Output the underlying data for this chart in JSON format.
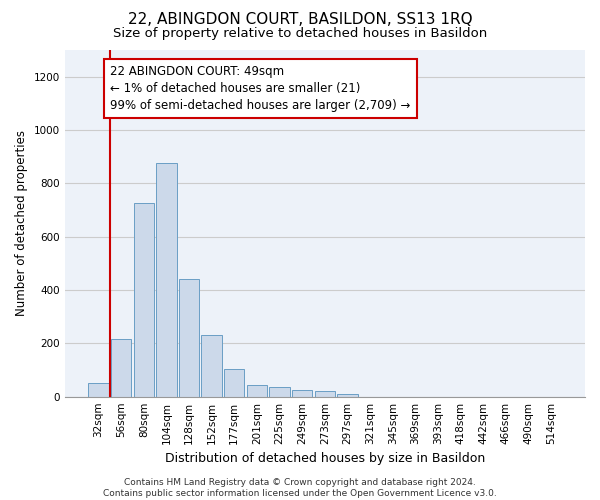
{
  "title": "22, ABINGDON COURT, BASILDON, SS13 1RQ",
  "subtitle": "Size of property relative to detached houses in Basildon",
  "xlabel": "Distribution of detached houses by size in Basildon",
  "ylabel": "Number of detached properties",
  "categories": [
    "32sqm",
    "56sqm",
    "80sqm",
    "104sqm",
    "128sqm",
    "152sqm",
    "177sqm",
    "201sqm",
    "225sqm",
    "249sqm",
    "273sqm",
    "297sqm",
    "321sqm",
    "345sqm",
    "369sqm",
    "393sqm",
    "418sqm",
    "442sqm",
    "466sqm",
    "490sqm",
    "514sqm"
  ],
  "values": [
    50,
    215,
    725,
    875,
    440,
    230,
    105,
    45,
    35,
    25,
    20,
    10,
    0,
    0,
    0,
    0,
    0,
    0,
    0,
    0,
    0
  ],
  "bar_color": "#ccd9ea",
  "bar_edge_color": "#6a9ec5",
  "bar_edge_width": 0.7,
  "annotation_line1": "22 ABINGDON COURT: 49sqm",
  "annotation_line2": "← 1% of detached houses are smaller (21)",
  "annotation_line3": "99% of semi-detached houses are larger (2,709) →",
  "annotation_box_color": "#ffffff",
  "annotation_box_edge_color": "#cc0000",
  "vline_color": "#cc0000",
  "vline_x": 0.5,
  "ylim": [
    0,
    1300
  ],
  "yticks": [
    0,
    200,
    400,
    600,
    800,
    1000,
    1200
  ],
  "grid_color": "#cccccc",
  "background_color": "#edf2f9",
  "footer_text": "Contains HM Land Registry data © Crown copyright and database right 2024.\nContains public sector information licensed under the Open Government Licence v3.0.",
  "title_fontsize": 11,
  "subtitle_fontsize": 9.5,
  "xlabel_fontsize": 9,
  "ylabel_fontsize": 8.5,
  "tick_fontsize": 7.5,
  "annotation_fontsize": 8.5,
  "footer_fontsize": 6.5
}
